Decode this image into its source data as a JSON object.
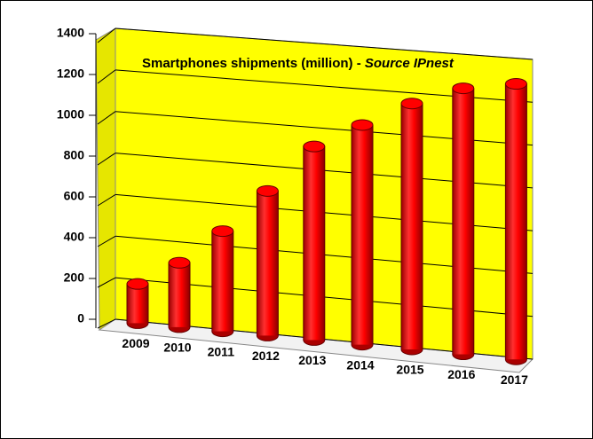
{
  "chart_data": {
    "type": "bar",
    "title": "Smartphones shipments (million) -",
    "source": "Source IPnest",
    "categories": [
      "2009",
      "2010",
      "2011",
      "2012",
      "2013",
      "2014",
      "2015",
      "2016",
      "2017"
    ],
    "values": [
      180,
      300,
      470,
      680,
      910,
      1030,
      1150,
      1240,
      1280
    ],
    "color": "#ff0000",
    "ylim": [
      0,
      1400
    ],
    "yticks": [
      0,
      200,
      400,
      600,
      800,
      1000,
      1200,
      1400
    ],
    "grid": true
  }
}
